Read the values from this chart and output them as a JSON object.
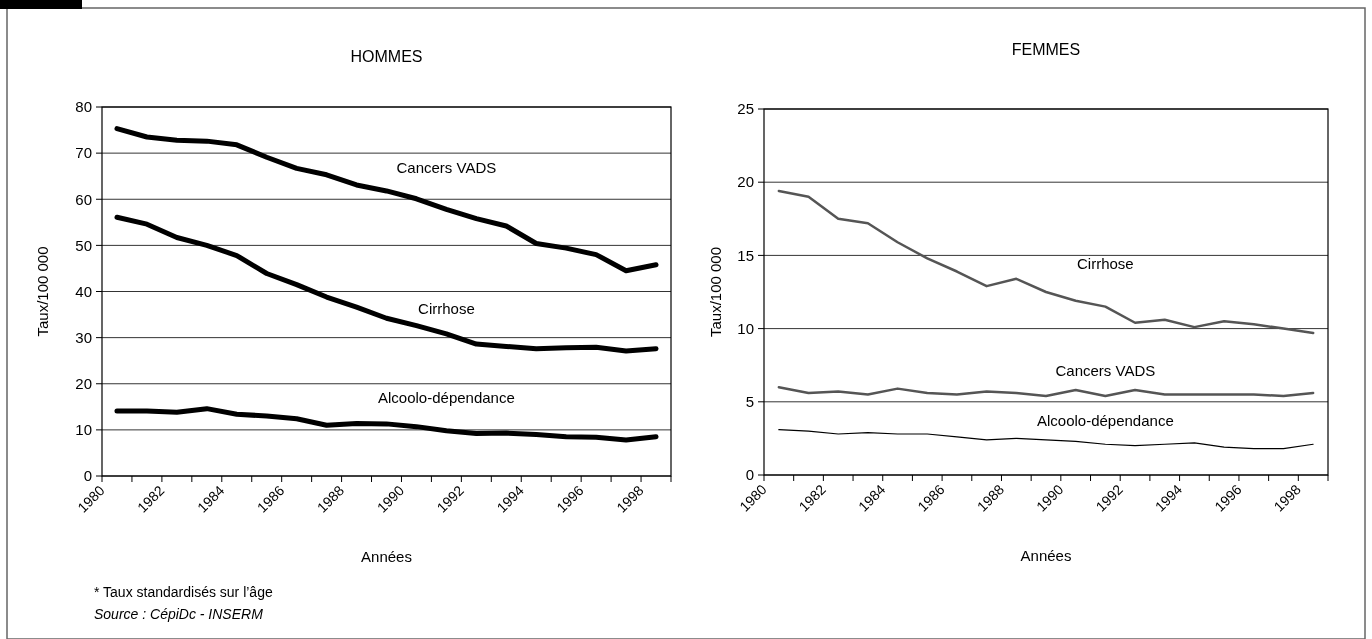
{
  "chart_data": [
    {
      "type": "line",
      "title": "HOMMES",
      "xlabel": "Années",
      "ylabel": "Taux/100 000",
      "x": [
        1980.5,
        1981.5,
        1982.5,
        1983.5,
        1984.5,
        1985.5,
        1986.5,
        1987.5,
        1988.5,
        1989.5,
        1990.5,
        1991.5,
        1992.5,
        1993.5,
        1994.5,
        1995.5,
        1996.5,
        1997.5,
        1998.5
      ],
      "series": [
        {
          "name": "Cancers VADS",
          "color": "#000000",
          "values": [
            75.3,
            73.5,
            72.8,
            72.6,
            71.8,
            69.1,
            66.7,
            65.3,
            63.1,
            61.8,
            60.1,
            57.8,
            55.8,
            54.2,
            50.4,
            49.4,
            48.0,
            44.5,
            45.8
          ]
        },
        {
          "name": "Cirrhose",
          "color": "#000000",
          "values": [
            56.1,
            54.6,
            51.7,
            50.0,
            47.8,
            43.9,
            41.5,
            38.8,
            36.6,
            34.2,
            32.6,
            30.8,
            28.6,
            28.1,
            27.6,
            27.8,
            27.9,
            27.1,
            27.6
          ]
        },
        {
          "name": "Alcoolo-dépendance",
          "color": "#000000",
          "values": [
            14.1,
            14.1,
            13.8,
            14.6,
            13.4,
            13.0,
            12.4,
            11.0,
            11.4,
            11.3,
            10.7,
            9.8,
            9.2,
            9.3,
            9.0,
            8.5,
            8.4,
            7.8,
            8.5
          ]
        }
      ],
      "xlim": [
        1980,
        1999
      ],
      "xticks": [
        1980,
        {
          "value": 1981,
          "label": null
        },
        1982,
        {
          "value": 1983,
          "label": null
        },
        1984,
        {
          "value": 1985,
          "label": null
        },
        1986,
        {
          "value": 1987,
          "label": null
        },
        1988,
        {
          "value": 1989,
          "label": null
        },
        1990,
        {
          "value": 1991,
          "label": null
        },
        1992,
        {
          "value": 1993,
          "label": null
        },
        1994,
        {
          "value": 1995,
          "label": null
        },
        1996,
        {
          "value": 1997,
          "label": null
        },
        1998,
        {
          "value": 1999,
          "label": null
        }
      ],
      "ylim": [
        0,
        80
      ],
      "yticks": [
        0,
        10,
        20,
        30,
        40,
        50,
        60,
        70,
        80
      ],
      "grid": "y",
      "legend": false,
      "marker": "none",
      "line_style": "solid",
      "annotations": [
        "* Taux standardisés sur l’âge",
        "Source :  CépiDc - INSERM"
      ]
    },
    {
      "type": "line",
      "title": "FEMMES",
      "xlabel": "Années",
      "ylabel": "Taux/100 000",
      "x": [
        1980.5,
        1981.5,
        1982.5,
        1983.5,
        1984.5,
        1985.5,
        1986.5,
        1987.5,
        1988.5,
        1989.5,
        1990.5,
        1991.5,
        1992.5,
        1993.5,
        1994.5,
        1995.5,
        1996.5,
        1997.5,
        1998.5
      ],
      "series": [
        {
          "name": "Cirrhose",
          "color": "#555555",
          "values": [
            19.4,
            19.0,
            17.5,
            17.2,
            15.9,
            14.8,
            13.9,
            12.9,
            13.4,
            12.5,
            11.9,
            11.5,
            10.4,
            10.6,
            10.1,
            10.5,
            10.3,
            10.0,
            9.7
          ]
        },
        {
          "name": "Cancers VADS",
          "color": "#555555",
          "values": [
            6.0,
            5.6,
            5.7,
            5.5,
            5.9,
            5.6,
            5.5,
            5.7,
            5.6,
            5.4,
            5.8,
            5.4,
            5.8,
            5.5,
            5.5,
            5.5,
            5.5,
            5.4,
            5.6
          ]
        },
        {
          "name": "Alcoolo-dépendance",
          "color": "#000000",
          "values": [
            3.1,
            3.0,
            2.8,
            2.9,
            2.8,
            2.8,
            2.6,
            2.4,
            2.5,
            2.4,
            2.3,
            2.1,
            2.0,
            2.1,
            2.2,
            1.9,
            1.8,
            1.8,
            2.1
          ]
        }
      ],
      "xlim": [
        1980,
        1999
      ],
      "xticks": [
        1980,
        {
          "value": 1981,
          "label": null
        },
        1982,
        {
          "value": 1983,
          "label": null
        },
        1984,
        {
          "value": 1985,
          "label": null
        },
        1986,
        {
          "value": 1987,
          "label": null
        },
        1988,
        {
          "value": 1989,
          "label": null
        },
        1990,
        {
          "value": 1991,
          "label": null
        },
        1992,
        {
          "value": 1993,
          "label": null
        },
        1994,
        {
          "value": 1995,
          "label": null
        },
        1996,
        {
          "value": 1997,
          "label": null
        },
        1998,
        {
          "value": 1999,
          "label": null
        }
      ],
      "ylim": [
        0,
        25
      ],
      "yticks": [
        0,
        5,
        10,
        15,
        20,
        25
      ],
      "grid": "y",
      "legend": false,
      "marker": "none",
      "line_style": "solid"
    }
  ]
}
